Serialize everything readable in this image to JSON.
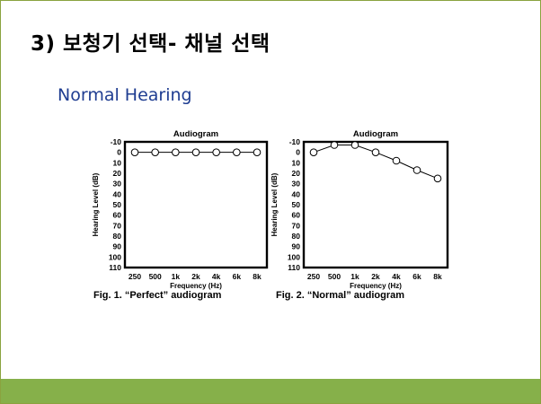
{
  "slide": {
    "title": "3) 보청기 선택- 채널 선택",
    "subtitle": "Normal Hearing",
    "accent_color": "#86b04a",
    "subtitle_color": "#1f3d91"
  },
  "chart_data": [
    {
      "type": "line",
      "title": "Audiogram",
      "xlabel": "Frequency (Hz)",
      "ylabel": "Hearing Level (dB)",
      "categories": [
        "250",
        "500",
        "1k",
        "2k",
        "4k",
        "6k",
        "8k"
      ],
      "series": [
        {
          "values": [
            0,
            0,
            0,
            0,
            0,
            0,
            0
          ]
        }
      ],
      "yticks": [
        "-10",
        "0",
        "10",
        "20",
        "30",
        "40",
        "50",
        "60",
        "70",
        "80",
        "90",
        "100",
        "110"
      ],
      "ylim": [
        -10,
        110
      ],
      "y_inverted": true,
      "grid": false,
      "caption": "Fig. 1. “Perfect” audiogram"
    },
    {
      "type": "line",
      "title": "Audiogram",
      "xlabel": "Frequency (Hz)",
      "ylabel": "Hearing Level (dB)",
      "categories": [
        "250",
        "500",
        "1k",
        "2k",
        "4k",
        "6k",
        "8k"
      ],
      "series": [
        {
          "values": [
            0,
            -7,
            -7,
            0,
            8,
            17,
            25
          ]
        }
      ],
      "yticks": [
        "-10",
        "0",
        "10",
        "20",
        "30",
        "40",
        "50",
        "60",
        "70",
        "80",
        "90",
        "100",
        "110"
      ],
      "ylim": [
        -10,
        110
      ],
      "y_inverted": true,
      "grid": false,
      "caption": "Fig. 2. “Normal” audiogram"
    }
  ]
}
